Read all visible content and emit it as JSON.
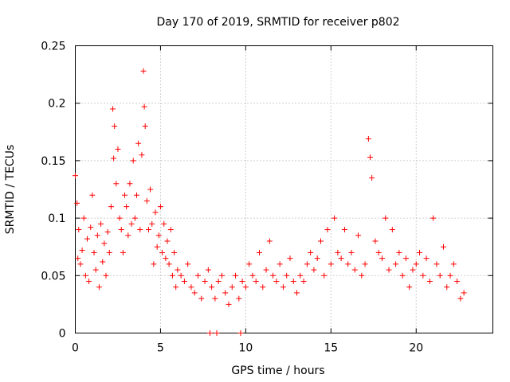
{
  "chart_data": {
    "type": "scatter",
    "title": "Day 170 of 2019, SRMTID for receiver p802",
    "xlabel": "GPS time / hours",
    "ylabel": "SRMTID / TECUs",
    "xlim": [
      0,
      24.5
    ],
    "ylim": [
      0,
      0.25
    ],
    "xticks": [
      0,
      5,
      10,
      15,
      20
    ],
    "xtick_labels": [
      "0",
      "5",
      "10",
      "15",
      "20"
    ],
    "yticks": [
      0,
      0.05,
      0.1,
      0.15,
      0.2,
      0.25
    ],
    "ytick_labels": [
      "0",
      "0.05",
      "0.1",
      "0.15",
      "0.2",
      "0.25"
    ],
    "grid": true,
    "marker": "+",
    "color": "#ff0000",
    "series": [
      {
        "name": "SRMTID",
        "x": [
          0.0,
          0.1,
          0.15,
          0.2,
          0.3,
          0.4,
          0.5,
          0.6,
          0.7,
          0.8,
          0.9,
          1.0,
          1.1,
          1.2,
          1.3,
          1.4,
          1.5,
          1.6,
          1.7,
          1.8,
          1.9,
          2.0,
          2.1,
          2.2,
          2.25,
          2.3,
          2.4,
          2.5,
          2.6,
          2.7,
          2.8,
          2.9,
          3.0,
          3.1,
          3.2,
          3.3,
          3.4,
          3.5,
          3.6,
          3.7,
          3.8,
          3.9,
          4.0,
          4.05,
          4.1,
          4.2,
          4.3,
          4.4,
          4.5,
          4.6,
          4.7,
          4.8,
          4.9,
          5.0,
          5.1,
          5.2,
          5.3,
          5.4,
          5.5,
          5.6,
          5.7,
          5.8,
          5.9,
          6.0,
          6.2,
          6.4,
          6.6,
          6.8,
          7.0,
          7.2,
          7.4,
          7.6,
          7.8,
          8.0,
          8.2,
          8.4,
          8.6,
          8.8,
          9.0,
          9.2,
          9.4,
          9.6,
          9.8,
          10.0,
          10.2,
          10.4,
          10.6,
          10.8,
          11.0,
          11.2,
          11.4,
          11.6,
          11.8,
          12.0,
          12.2,
          12.4,
          12.6,
          12.8,
          13.0,
          13.2,
          13.4,
          13.6,
          13.8,
          14.0,
          14.2,
          14.4,
          14.6,
          14.8,
          15.0,
          15.2,
          15.4,
          15.6,
          15.8,
          16.0,
          16.2,
          16.4,
          16.6,
          16.8,
          17.0,
          17.2,
          17.3,
          17.4,
          17.6,
          17.8,
          18.0,
          18.2,
          18.4,
          18.6,
          18.8,
          19.0,
          19.2,
          19.4,
          19.6,
          19.8,
          20.0,
          20.2,
          20.4,
          20.6,
          20.8,
          21.0,
          21.2,
          21.4,
          21.6,
          21.8,
          22.0,
          22.2,
          22.4,
          22.6,
          22.8,
          7.9,
          8.3,
          9.7
        ],
        "y": [
          0.137,
          0.113,
          0.065,
          0.09,
          0.06,
          0.072,
          0.1,
          0.05,
          0.082,
          0.045,
          0.092,
          0.12,
          0.07,
          0.055,
          0.085,
          0.04,
          0.095,
          0.062,
          0.078,
          0.05,
          0.088,
          0.07,
          0.11,
          0.195,
          0.152,
          0.18,
          0.13,
          0.16,
          0.1,
          0.09,
          0.07,
          0.12,
          0.11,
          0.085,
          0.13,
          0.095,
          0.15,
          0.1,
          0.12,
          0.165,
          0.09,
          0.155,
          0.228,
          0.197,
          0.18,
          0.115,
          0.09,
          0.125,
          0.095,
          0.06,
          0.105,
          0.075,
          0.085,
          0.11,
          0.07,
          0.095,
          0.065,
          0.08,
          0.06,
          0.09,
          0.05,
          0.07,
          0.04,
          0.055,
          0.05,
          0.045,
          0.06,
          0.04,
          0.035,
          0.05,
          0.03,
          0.045,
          0.055,
          0.04,
          0.03,
          0.045,
          0.05,
          0.035,
          0.025,
          0.04,
          0.05,
          0.03,
          0.045,
          0.04,
          0.06,
          0.05,
          0.045,
          0.07,
          0.04,
          0.055,
          0.08,
          0.05,
          0.045,
          0.06,
          0.04,
          0.05,
          0.065,
          0.045,
          0.035,
          0.05,
          0.045,
          0.06,
          0.07,
          0.055,
          0.065,
          0.08,
          0.05,
          0.09,
          0.06,
          0.1,
          0.07,
          0.065,
          0.09,
          0.06,
          0.07,
          0.055,
          0.085,
          0.05,
          0.06,
          0.169,
          0.153,
          0.135,
          0.08,
          0.07,
          0.065,
          0.1,
          0.055,
          0.09,
          0.06,
          0.07,
          0.05,
          0.065,
          0.04,
          0.055,
          0.06,
          0.07,
          0.05,
          0.065,
          0.045,
          0.1,
          0.06,
          0.05,
          0.075,
          0.04,
          0.05,
          0.06,
          0.045,
          0.03,
          0.035,
          0.0,
          0.0,
          0.0
        ]
      }
    ]
  }
}
